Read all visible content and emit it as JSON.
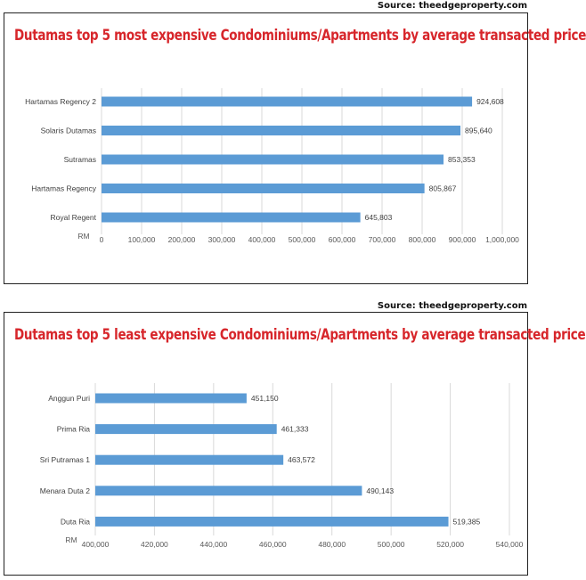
{
  "charts": [
    {
      "source": "Source: theedgeproperty.com",
      "title": "Dutamas top 5 most expensive Condominiums/Apartments by average transacted price"
    },
    {
      "source": "Source: theedgeproperty.com",
      "title": "Dutamas top 5 least expensive Condominiums/Apartments by average transacted price"
    }
  ],
  "colors": {
    "bar": "#5b9bd5",
    "title": "#d7262b",
    "grid": "#d9d9d9"
  },
  "chart_data": [
    {
      "type": "bar",
      "orientation": "horizontal",
      "title": "Dutamas top 5 most expensive Condominiums/Apartments by average transacted price",
      "categories": [
        "Hartamas Regency 2",
        "Solaris Dutamas",
        "Sutramas",
        "Hartamas Regency",
        "Royal Regent"
      ],
      "values": [
        924608,
        895640,
        853353,
        805867,
        645803
      ],
      "value_labels": [
        "924,608",
        "895,640",
        "853,353",
        "805,867",
        "645,803"
      ],
      "xlabel": "RM",
      "xlim": [
        0,
        1000000
      ],
      "xticks": [
        0,
        100000,
        200000,
        300000,
        400000,
        500000,
        600000,
        700000,
        800000,
        900000,
        1000000
      ],
      "xtick_labels": [
        "0",
        "100,000",
        "200,000",
        "300,000",
        "400,000",
        "500,000",
        "600,000",
        "700,000",
        "800,000",
        "900,000",
        "1,000,000"
      ],
      "grid": true
    },
    {
      "type": "bar",
      "orientation": "horizontal",
      "title": "Dutamas top 5 least expensive Condominiums/Apartments by average transacted price",
      "categories": [
        "Anggun Puri",
        "Prima Ria",
        "Sri Putramas 1",
        "Menara Duta 2",
        "Duta Ria"
      ],
      "values": [
        451150,
        461333,
        463572,
        490143,
        519385
      ],
      "value_labels": [
        "451,150",
        "461,333",
        "463,572",
        "490,143",
        "519,385"
      ],
      "xlabel": "RM",
      "xlim": [
        400000,
        540000
      ],
      "xticks": [
        400000,
        420000,
        440000,
        460000,
        480000,
        500000,
        520000,
        540000
      ],
      "xtick_labels": [
        "400,000",
        "420,000",
        "440,000",
        "460,000",
        "480,000",
        "500,000",
        "520,000",
        "540,000"
      ],
      "grid": true
    }
  ]
}
